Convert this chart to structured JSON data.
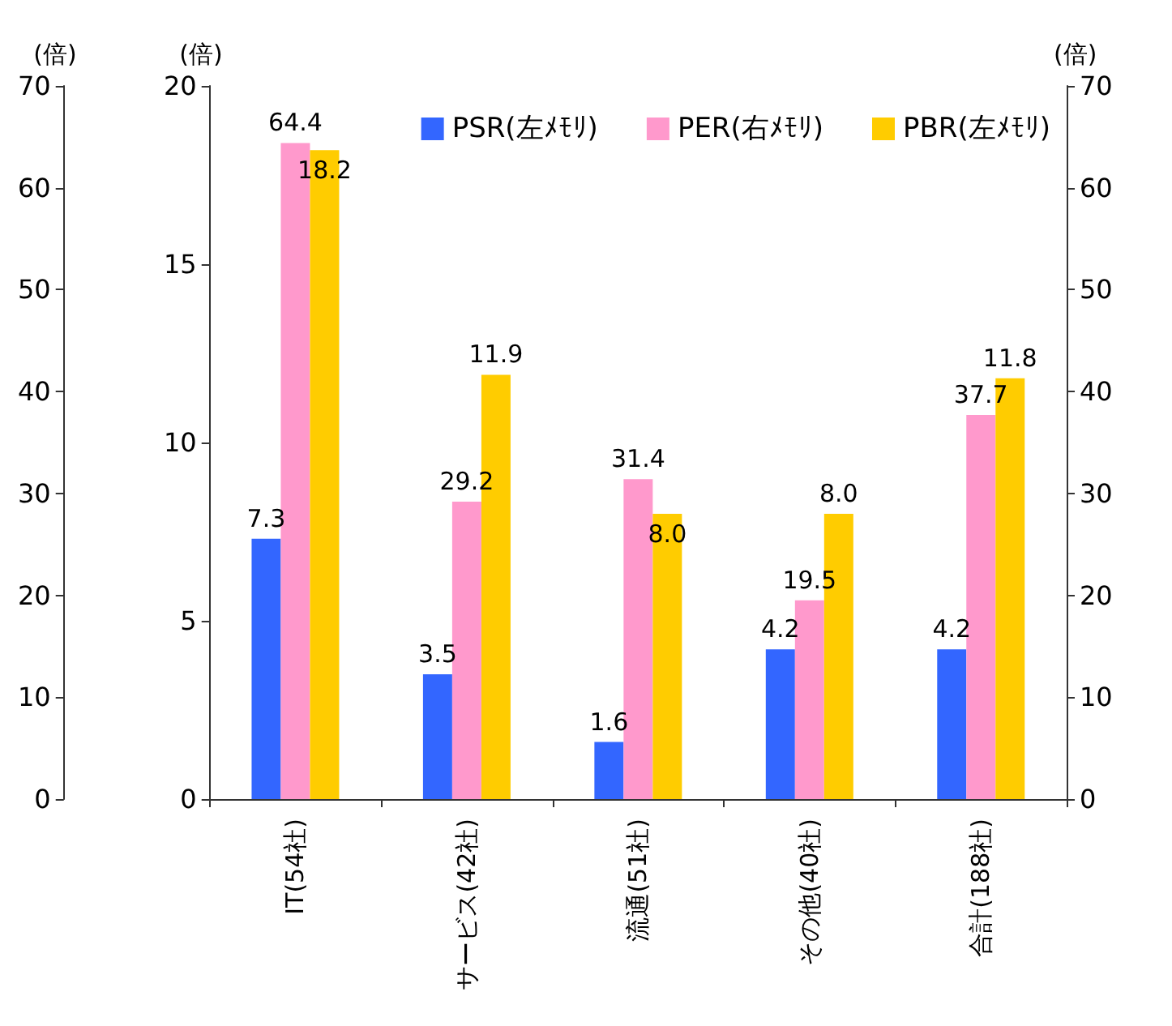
{
  "chart_data": {
    "type": "bar",
    "categories": [
      "IT(54社)",
      "サービス(42社)",
      "流通(51社)",
      "その他(40社)",
      "合計(188社)"
    ],
    "series": [
      {
        "name": "PSR(左ﾒﾓﾘ)",
        "color": "#3366ff",
        "values": [
          7.3,
          3.5,
          1.6,
          4.2,
          4.2
        ]
      },
      {
        "name": "PER(右ﾒﾓﾘ)",
        "color": "#ff99cc",
        "values": [
          64.4,
          29.2,
          31.4,
          19.5,
          37.7
        ],
        "axis": "y2"
      },
      {
        "name": "PBR(左ﾒﾓﾘ)",
        "color": "#ffcc00",
        "values": [
          18.2,
          11.9,
          8,
          8,
          11.8
        ],
        "value_labels": [
          "18.2",
          "11.9",
          "8.0",
          "8.0",
          "11.8"
        ]
      }
    ],
    "ylabel": "(倍)",
    "y2label": "(倍)",
    "y3label": "(倍)",
    "ylim": [
      0,
      20
    ],
    "yticks": [
      0,
      5,
      10,
      15,
      20
    ],
    "y2lim": [
      0,
      70
    ],
    "y2ticks": [
      0,
      10,
      20,
      30,
      40,
      50,
      60,
      70
    ],
    "y3lim": [
      0,
      70
    ],
    "y3ticks": [
      0,
      10,
      20,
      30,
      40,
      50,
      60,
      70
    ],
    "data_labels": true,
    "grid": false,
    "legend": "top right"
  }
}
